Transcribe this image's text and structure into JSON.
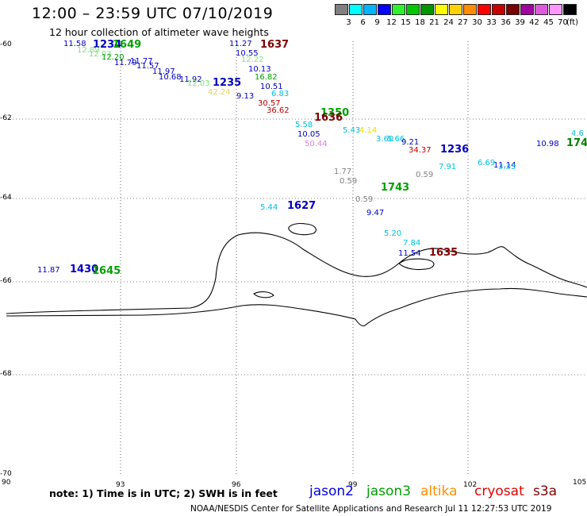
{
  "header": {
    "title": "12:00 – 23:59 UTC 07/10/2019",
    "subtitle": "12 hour collection of altimeter wave heights"
  },
  "legend": {
    "unit": "(ft)",
    "levels": [
      "3",
      "6",
      "9",
      "12",
      "15",
      "18",
      "21",
      "24",
      "27",
      "30",
      "33",
      "36",
      "39",
      "42",
      "45",
      "70"
    ],
    "colors": [
      "#808080",
      "#00ffff",
      "#00b4ff",
      "#0000ff",
      "#2ff22f",
      "#00c800",
      "#009600",
      "#ffff00",
      "#ffd200",
      "#ff8c00",
      "#ff0000",
      "#c80000",
      "#780000",
      "#a000a0",
      "#dc5adc",
      "#ff96ff",
      "#000000"
    ]
  },
  "map": {
    "y_axis_labels": [
      "-60",
      "-62",
      "-64",
      "-66",
      "-68",
      "-70"
    ],
    "x_axis_labels": [
      "90",
      "93",
      "96",
      "99",
      "102",
      "105"
    ],
    "lat_range": [
      -70,
      -60
    ],
    "lon_range": [
      90,
      105
    ],
    "grid": "dotted",
    "swh_labels": [
      {
        "text": "11.58",
        "color": "#0000c0"
      },
      {
        "text": "1234",
        "color": "#0000c0",
        "bold": true
      },
      {
        "text": "1649",
        "color": "#00a000",
        "bold": true
      },
      {
        "text": "12.89",
        "color": "#80e080"
      },
      {
        "text": "12.03",
        "color": "#80e080"
      },
      {
        "text": "12.20",
        "color": "#00a000"
      },
      {
        "text": "11.79",
        "color": "#0000c0"
      },
      {
        "text": "11.77",
        "color": "#0000c0"
      },
      {
        "text": "11.57",
        "color": "#0000c0"
      },
      {
        "text": "11.97",
        "color": "#0000c0"
      },
      {
        "text": "10.68",
        "color": "#0000c0"
      },
      {
        "text": "11.92",
        "color": "#0000c0"
      },
      {
        "text": "1235",
        "color": "#0000c0",
        "bold": true
      },
      {
        "text": "12.03",
        "color": "#80e080"
      },
      {
        "text": "42.24",
        "color": "#e8d060"
      },
      {
        "text": "9.13",
        "color": "#0000c0"
      },
      {
        "text": "11.27",
        "color": "#0000c0"
      },
      {
        "text": "1637",
        "color": "#800000",
        "bold": true
      },
      {
        "text": "10.55",
        "color": "#0000c0"
      },
      {
        "text": "12.22",
        "color": "#80e080"
      },
      {
        "text": "10.13",
        "color": "#0000c0"
      },
      {
        "text": "16.82",
        "color": "#00a000"
      },
      {
        "text": "10.51",
        "color": "#0000c0"
      },
      {
        "text": "6.83",
        "color": "#00c0e0"
      },
      {
        "text": "30.57",
        "color": "#c00000"
      },
      {
        "text": "36.62",
        "color": "#c00000"
      },
      {
        "text": "1350",
        "color": "#00a000",
        "bold": true
      },
      {
        "text": "1636",
        "color": "#800000",
        "bold": true
      },
      {
        "text": "5.58",
        "color": "#00c0e0"
      },
      {
        "text": "10.05",
        "color": "#0000c0"
      },
      {
        "text": "50.44",
        "color": "#e080e0"
      },
      {
        "text": "5.43",
        "color": "#00c0e0"
      },
      {
        "text": "4.14",
        "color": "#e8e000"
      },
      {
        "text": "3.60",
        "color": "#00c0e0"
      },
      {
        "text": "5.66",
        "color": "#00c0e0"
      },
      {
        "text": "9.21",
        "color": "#0000c0"
      },
      {
        "text": "34.37",
        "color": "#c00000"
      },
      {
        "text": "1236",
        "color": "#0000c0",
        "bold": true
      },
      {
        "text": "7.91",
        "color": "#00c0e0"
      },
      {
        "text": "11.14",
        "color": "#0000c0"
      },
      {
        "text": "6.69",
        "color": "#00c0e0"
      },
      {
        "text": "3.33",
        "color": "#00c0e0"
      },
      {
        "text": "10.98",
        "color": "#0000c0"
      },
      {
        "text": "4.6",
        "color": "#00c0e0"
      },
      {
        "text": "174",
        "color": "#008000",
        "bold": true
      },
      {
        "text": "1.77",
        "color": "#808080"
      },
      {
        "text": "0.59",
        "color": "#808080"
      },
      {
        "text": "0.59",
        "color": "#808080"
      },
      {
        "text": "1743",
        "color": "#00a000",
        "bold": true
      },
      {
        "text": "0.59",
        "color": "#808080"
      },
      {
        "text": "5.44",
        "color": "#00c0e0"
      },
      {
        "text": "1627",
        "color": "#0000c0",
        "bold": true
      },
      {
        "text": "9.47",
        "color": "#0000c0"
      },
      {
        "text": "5.20",
        "color": "#00c0e0"
      },
      {
        "text": "7.84",
        "color": "#00c0e0"
      },
      {
        "text": "11.54",
        "color": "#0000c0"
      },
      {
        "text": "1635",
        "color": "#800000",
        "bold": true
      },
      {
        "text": "11.87",
        "color": "#0000c0"
      },
      {
        "text": "1430",
        "color": "#0000c0",
        "bold": true
      },
      {
        "text": "1645",
        "color": "#00a000",
        "bold": true
      }
    ]
  },
  "footer": {
    "note": "note:  1) Time is in UTC;  2) SWH is in feet",
    "satellites": [
      {
        "name": "jason2",
        "color": "#0000e0"
      },
      {
        "name": "jason3",
        "color": "#00a000"
      },
      {
        "name": "altika",
        "color": "#ff8c00"
      },
      {
        "name": "cryosat",
        "color": "#e00000"
      },
      {
        "name": "s3a",
        "color": "#800000"
      }
    ],
    "credit": "NOAA/NESDIS Center for Satellite Applications and Research   Jul 11 12:27:53 UTC 2019"
  }
}
